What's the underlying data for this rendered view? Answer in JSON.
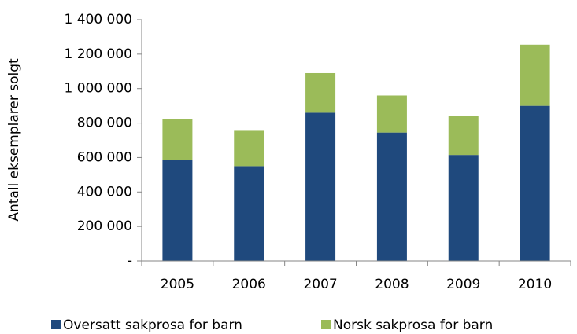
{
  "chart_data": {
    "type": "stacked_bar",
    "y_label": "Antall eksemplarer solgt",
    "categories": [
      "2005",
      "2006",
      "2007",
      "2008",
      "2009",
      "2010"
    ],
    "series": [
      {
        "name": "Oversatt sakprosa for barn",
        "color": "#1f497d",
        "values": [
          585000,
          550000,
          860000,
          745000,
          615000,
          900000
        ]
      },
      {
        "name": "Norsk sakprosa for barn",
        "color": "#9bbb59",
        "values": [
          240000,
          205000,
          230000,
          215000,
          225000,
          355000
        ]
      }
    ],
    "ylim": [
      0,
      1400000
    ],
    "yticks": [
      {
        "value": 0,
        "label": "-"
      },
      {
        "value": 200000,
        "label": "200 000"
      },
      {
        "value": 400000,
        "label": "400 000"
      },
      {
        "value": 600000,
        "label": "600 000"
      },
      {
        "value": 800000,
        "label": "800 000"
      },
      {
        "value": 1000000,
        "label": "1 000 000"
      },
      {
        "value": 1200000,
        "label": "1 200 000"
      },
      {
        "value": 1400000,
        "label": "1 400 000"
      }
    ],
    "legend": "bottom"
  }
}
